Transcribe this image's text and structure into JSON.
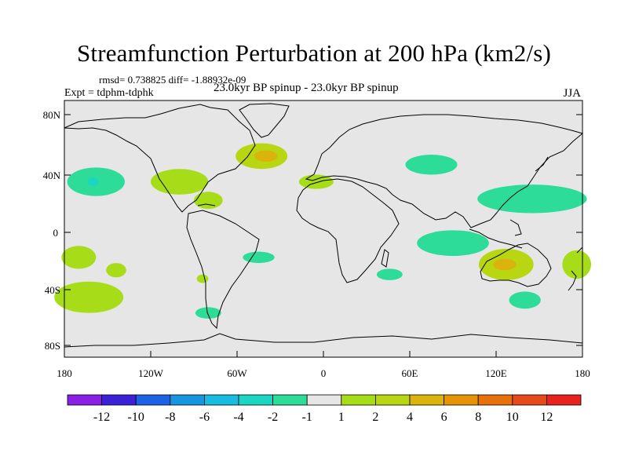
{
  "title": "Streamfunction Perturbation at 200 hPa (km2/s)",
  "stats_line": "rmsd= 0.738825 diff= -1.88932e-09",
  "experiment_label": "Expt = tdphm-tdphk",
  "runs_label": "23.0kyr BP spinup - 23.0kyr BP spinup",
  "season_label": "JJA",
  "lat_ticks": [
    "80N",
    "40N",
    "0",
    "40S",
    "80S"
  ],
  "lon_ticks": [
    "180",
    "120W",
    "60W",
    "0",
    "60E",
    "120E",
    "180"
  ],
  "colorbar": {
    "colors": [
      "#8a1fe6",
      "#3a20d6",
      "#1c62e6",
      "#1696e0",
      "#18bce0",
      "#1cd6c4",
      "#2edc9a",
      "#e6e6e6",
      "#a6dc18",
      "#b8d612",
      "#dcb20c",
      "#e69406",
      "#e8700c",
      "#e64a1a",
      "#e8221c"
    ],
    "labels": [
      "-12",
      "-10",
      "-8",
      "-6",
      "-4",
      "-2",
      "-1",
      "1",
      "2",
      "4",
      "6",
      "8",
      "10",
      "12"
    ]
  },
  "chart_data": {
    "type": "heatmap",
    "title": "Streamfunction Perturbation at 200 hPa (km2/s)",
    "projection": "cylindrical equidistant",
    "xlim": [
      -180,
      180
    ],
    "ylim": [
      -90,
      90
    ],
    "contour_levels": [
      -12,
      -10,
      -8,
      -6,
      -4,
      -2,
      -1,
      1,
      2,
      4,
      6,
      8,
      10,
      12
    ],
    "features": [
      {
        "name": "north-atlantic-high",
        "lon": -43,
        "lat": 51,
        "rx": 18,
        "ry": 9,
        "level": 2
      },
      {
        "name": "north-atlantic-core",
        "lon": -40,
        "lat": 51,
        "rx": 8,
        "ry": 4,
        "level": 4
      },
      {
        "name": "north-america-positive",
        "lon": -100,
        "lat": 33,
        "rx": 20,
        "ry": 9,
        "level": 1
      },
      {
        "name": "caribbean-positive",
        "lon": -80,
        "lat": 20,
        "rx": 10,
        "ry": 6,
        "level": 1
      },
      {
        "name": "west-africa-positive",
        "lon": -5,
        "lat": 33,
        "rx": 12,
        "ry": 5,
        "level": 1
      },
      {
        "name": "east-pacific-negative",
        "lon": -158,
        "lat": 33,
        "rx": 20,
        "ry": 10,
        "level": -1
      },
      {
        "name": "east-pacific-core",
        "lon": -160,
        "lat": 33,
        "rx": 4,
        "ry": 3,
        "level": -2
      },
      {
        "name": "central-asia-negative",
        "lon": 75,
        "lat": 45,
        "rx": 18,
        "ry": 7,
        "level": -1
      },
      {
        "name": "west-pacific-negative",
        "lon": 145,
        "lat": 21,
        "rx": 38,
        "ry": 10,
        "level": -1
      },
      {
        "name": "indian-ocean-negative",
        "lon": 90,
        "lat": -10,
        "rx": 25,
        "ry": 9,
        "level": -1
      },
      {
        "name": "australia-positive",
        "lon": 127,
        "lat": -25,
        "rx": 19,
        "ry": 11,
        "level": 2
      },
      {
        "name": "australia-core",
        "lon": 126,
        "lat": -25,
        "rx": 8,
        "ry": 4,
        "level": 4
      },
      {
        "name": "tasman-positive",
        "lon": 176,
        "lat": -25,
        "rx": 10,
        "ry": 10,
        "level": 1
      },
      {
        "name": "southern-ocean-negative",
        "lon": 140,
        "lat": -50,
        "rx": 11,
        "ry": 6,
        "level": -1
      },
      {
        "name": "south-pacific-positive",
        "lon": -163,
        "lat": -48,
        "rx": 24,
        "ry": 11,
        "level": 1
      },
      {
        "name": "subtropical-pacific-positive",
        "lon": -170,
        "lat": -20,
        "rx": 12,
        "ry": 8,
        "level": 1
      },
      {
        "name": "south-america-negative",
        "lon": -45,
        "lat": -20,
        "rx": 11,
        "ry": 4,
        "level": -1
      },
      {
        "name": "south-atlantic-negative",
        "lon": -80,
        "lat": -59,
        "rx": 9,
        "ry": 4,
        "level": -1
      },
      {
        "name": "mascarene-negative",
        "lon": 46,
        "lat": -32,
        "rx": 9,
        "ry": 4,
        "level": -1
      },
      {
        "name": "southeast-pacific-positive",
        "lon": -144,
        "lat": -29,
        "rx": 7,
        "ry": 5,
        "level": 1
      },
      {
        "name": "chile-positive",
        "lon": -84,
        "lat": -35,
        "rx": 4,
        "ry": 3,
        "level": 1
      }
    ]
  }
}
